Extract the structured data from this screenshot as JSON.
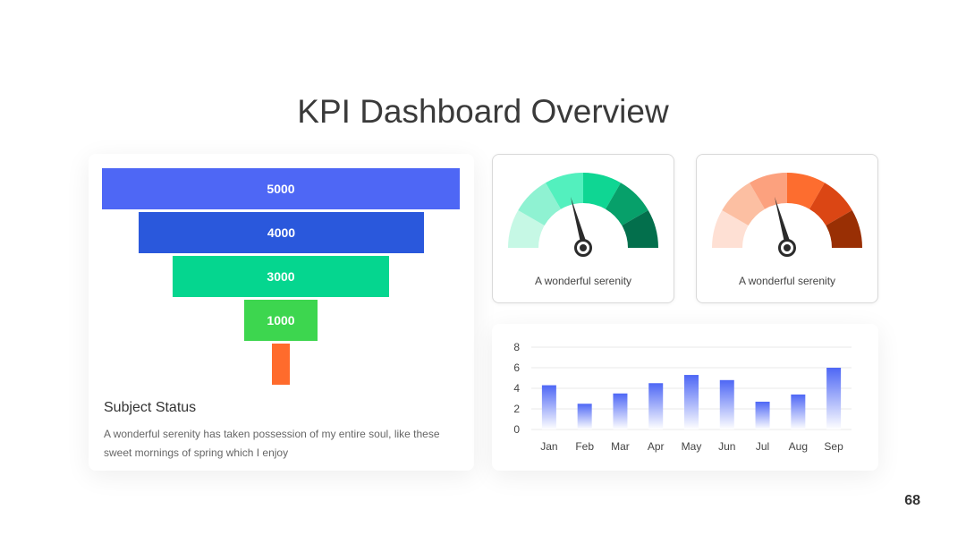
{
  "slide": {
    "title": "KPI Dashboard Overview",
    "page_number": "68"
  },
  "funnel": {
    "levels": [
      {
        "label": "5000",
        "color": "#4e67f5"
      },
      {
        "label": "4000",
        "color": "#2a58dc"
      },
      {
        "label": "3000",
        "color": "#05d68f"
      },
      {
        "label": "1000",
        "color": "#3dd64f"
      },
      {
        "label": "",
        "color": "#ff6b2c"
      }
    ],
    "subject_title": "Subject Status",
    "subject_desc": "A wonderful serenity has taken possession of my entire soul, like these sweet mornings of spring which I enjoy"
  },
  "gauges": [
    {
      "label": "A wonderful serenity",
      "colors": [
        "#c6f8e5",
        "#8ff2d2",
        "#53f0be",
        "#0fd693",
        "#07a06a",
        "#036f4c"
      ]
    },
    {
      "label": "A wonderful serenity",
      "colors": [
        "#fee0d4",
        "#fcbfa2",
        "#fca17e",
        "#fd6d2f",
        "#db4614",
        "#992f04"
      ]
    }
  ],
  "chart_data": {
    "type": "bar",
    "categories": [
      "Jan",
      "Feb",
      "Mar",
      "Apr",
      "May",
      "Jun",
      "Jul",
      "Aug",
      "Sep"
    ],
    "values": [
      4.3,
      2.5,
      3.5,
      4.5,
      5.3,
      4.8,
      2.7,
      3.4,
      6.0
    ],
    "ylim": [
      0,
      8
    ],
    "yticks": [
      0,
      2,
      4,
      6,
      8
    ],
    "grid": true,
    "bar_color_top": "#4e67f5",
    "bar_color_bottom": "#ffffff"
  }
}
